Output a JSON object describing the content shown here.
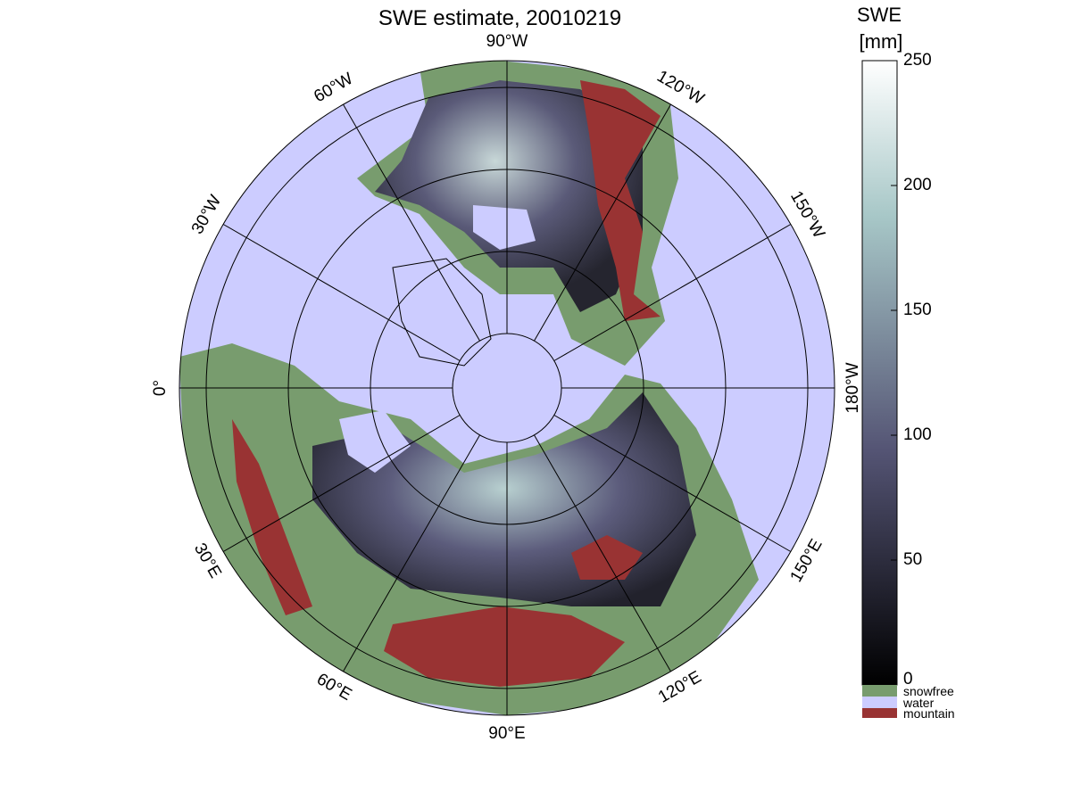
{
  "title": "SWE estimate, 20010219",
  "longitude_labels": [
    "90°W",
    "120°W",
    "150°W",
    "180°W",
    "150°E",
    "120°E",
    "90°E",
    "60°E",
    "30°E",
    "0°",
    "30°W",
    "60°W"
  ],
  "colorbar": {
    "title": [
      "SWE",
      "[mm]"
    ],
    "range": [
      0,
      250
    ],
    "ticks": [
      0,
      50,
      100,
      150,
      200,
      250
    ]
  },
  "legend": [
    "snowfree",
    "water",
    "mountain"
  ]
}
